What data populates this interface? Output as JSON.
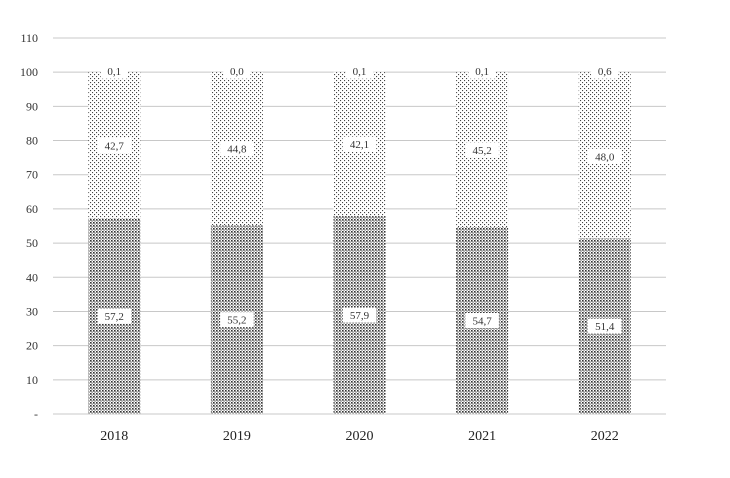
{
  "chart_data": {
    "type": "bar",
    "stacked": true,
    "categories": [
      "2018",
      "2019",
      "2020",
      "2021",
      "2022"
    ],
    "series": [
      {
        "values": [
          57.2,
          55.2,
          57.9,
          54.7,
          51.4
        ],
        "labels": [
          "57,2",
          "55,2",
          "57,9",
          "54,7",
          "51,4"
        ]
      },
      {
        "values": [
          42.7,
          44.8,
          42.1,
          45.2,
          48.0
        ],
        "labels": [
          "42,7",
          "44,8",
          "42,1",
          "45,2",
          "48,0"
        ]
      },
      {
        "values": [
          0.1,
          0.0,
          0.1,
          0.1,
          0.6
        ],
        "labels": [
          "0,1",
          "0,0",
          "0,1",
          "0,1",
          "0,6"
        ]
      }
    ],
    "yticks": [
      "-",
      "10",
      "20",
      "30",
      "40",
      "50",
      "60",
      "70",
      "80",
      "90",
      "100",
      "110"
    ],
    "ylim": [
      0,
      110
    ],
    "grid": true,
    "legend": "none",
    "title": "",
    "xlabel": "",
    "ylabel": ""
  }
}
